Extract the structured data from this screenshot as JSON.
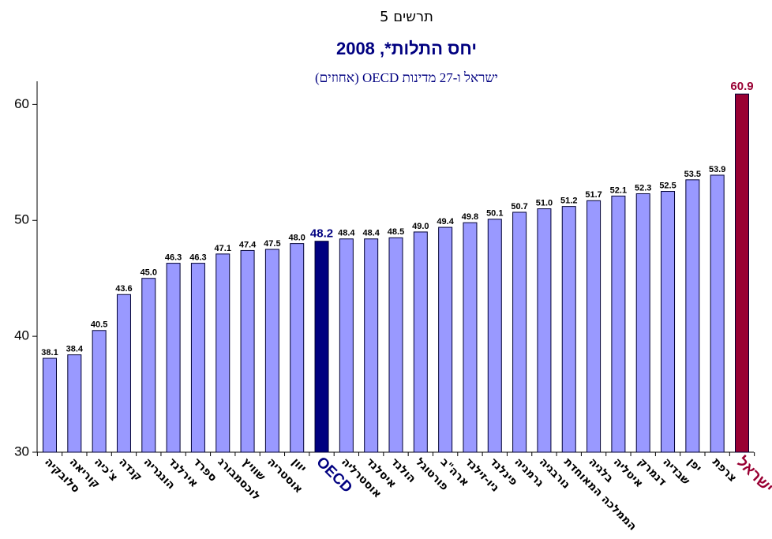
{
  "chart_data": {
    "type": "bar",
    "title": "תרשים 5",
    "subtitle": "יחס התלות*, 2008",
    "note": "ישראל ו-27 מדינות OECD (אחוזים)",
    "categories": [
      "סלובקיה",
      "קוריאה",
      "צ'כיה",
      "קנדה",
      "הונגריה",
      "אירלנד",
      "ספרד",
      "לוכסמבורג",
      "שוויץ",
      "אוסטריה",
      "יוון",
      "OECD",
      "אוסטרליה",
      "איסלנד",
      "הולנד",
      "פורטוגל",
      "ארה\"ב",
      "ניו-זילנד",
      "פינלנד",
      "גרמניה",
      "נורבגיה",
      "הממלכה המאוחדת",
      "בלגיה",
      "איטליה",
      "דנמרק",
      "שבדיה",
      "יפן",
      "צרפת",
      "ישראל"
    ],
    "values": [
      38.1,
      38.4,
      40.5,
      43.6,
      45.0,
      46.3,
      46.3,
      47.1,
      47.4,
      47.5,
      48.0,
      48.2,
      48.4,
      48.4,
      48.5,
      49.0,
      49.4,
      49.8,
      50.1,
      50.7,
      51.0,
      51.2,
      51.7,
      52.1,
      52.3,
      52.5,
      53.5,
      53.9,
      60.9
    ],
    "value_labels": [
      "38.1",
      "38.4",
      "40.5",
      "43.6",
      "45.0",
      "46.3",
      "46.3",
      "47.1",
      "47.4",
      "47.5",
      "48.0",
      "48.2",
      "48.4",
      "48.4",
      "48.5",
      "49.0",
      "49.4",
      "49.8",
      "50.1",
      "50.7",
      "51.0",
      "51.2",
      "51.7",
      "52.1",
      "52.3",
      "52.5",
      "53.5",
      "53.9",
      "60.9"
    ],
    "color": "#9999ff",
    "colors": [
      "#9999ff",
      "#9999ff",
      "#9999ff",
      "#9999ff",
      "#9999ff",
      "#9999ff",
      "#9999ff",
      "#9999ff",
      "#9999ff",
      "#9999ff",
      "#9999ff",
      "#000080",
      "#9999ff",
      "#9999ff",
      "#9999ff",
      "#9999ff",
      "#9999ff",
      "#9999ff",
      "#9999ff",
      "#9999ff",
      "#9999ff",
      "#9999ff",
      "#9999ff",
      "#9999ff",
      "#9999ff",
      "#9999ff",
      "#9999ff",
      "#9999ff",
      "#990033"
    ],
    "ylim": [
      30,
      62
    ],
    "yticks": [
      30,
      40,
      50,
      60
    ],
    "grid": false
  }
}
